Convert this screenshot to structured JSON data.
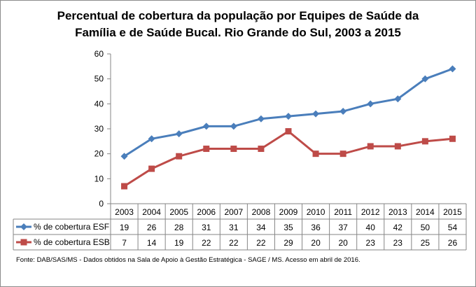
{
  "chart_data": {
    "type": "line",
    "title_lines": [
      "Percentual de cobertura da população por Equipes de Saúde da",
      "Família e de Saúde Bucal. Rio Grande do Sul, 2003 a 2015"
    ],
    "categories": [
      "2003",
      "2004",
      "2005",
      "2006",
      "2007",
      "2008",
      "2009",
      "2010",
      "2011",
      "2012",
      "2013",
      "2014",
      "2015"
    ],
    "ylim": [
      0,
      60
    ],
    "yticks": [
      0,
      10,
      20,
      30,
      40,
      50,
      60
    ],
    "grid": false,
    "legend": "data-table",
    "series": [
      {
        "name": "% de cobertura ESF",
        "values": [
          19,
          26,
          28,
          31,
          31,
          34,
          35,
          36,
          37,
          40,
          42,
          50,
          54
        ],
        "color": "#4a7ebb",
        "marker": "diamond"
      },
      {
        "name": "% de cobertura ESB",
        "values": [
          7,
          14,
          19,
          22,
          22,
          22,
          29,
          20,
          20,
          23,
          23,
          25,
          26
        ],
        "color": "#be4b48",
        "marker": "square"
      }
    ],
    "source": "Fonte:  DAB/SAS/MS - Dados obtidos na Sala de Apoio à Gestão Estratégica - SAGE / MS. Acesso em abril  de 2016."
  }
}
